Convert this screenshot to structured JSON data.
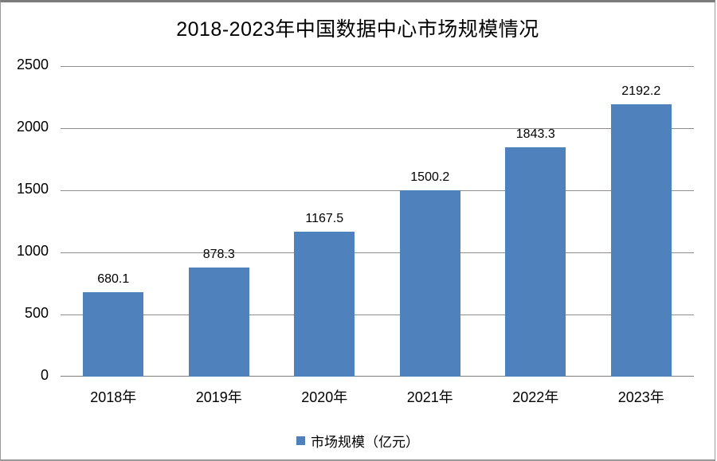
{
  "title": "2018-2023年中国数据中心市场规模情况",
  "colors": {
    "bar": "#4f81bd",
    "gridline": "#8e8e8e",
    "axis_line": "#7f7f7f",
    "frame_border": "#9a9a9a",
    "text": "#000000"
  },
  "legend": {
    "label": "市场规模（亿元）",
    "marker": "square-icon"
  },
  "chart_data": {
    "type": "bar",
    "title": "2018-2023年中国数据中心市场规模情况",
    "categories": [
      "2018年",
      "2019年",
      "2020年",
      "2021年",
      "2022年",
      "2023年"
    ],
    "series": [
      {
        "name": "市场规模（亿元）",
        "values": [
          680.1,
          878.3,
          1167.5,
          1500.2,
          1843.3,
          2192.2
        ],
        "labels": [
          "680.1",
          "878.3",
          "1167.5",
          "1500.2",
          "1843.3",
          "2192.2"
        ]
      }
    ],
    "xlabel": "",
    "ylabel": "",
    "ylim": [
      0,
      2500
    ],
    "yticks": [
      0,
      500,
      1000,
      1500,
      2000,
      2500
    ],
    "grid": true,
    "legend_position": "bottom",
    "data_labels_shown": true
  }
}
